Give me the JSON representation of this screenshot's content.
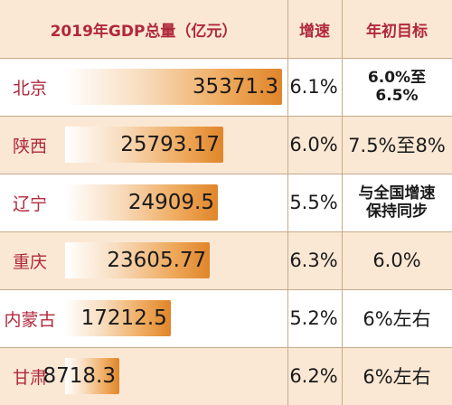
{
  "chart_data": {
    "type": "bar",
    "orientation": "horizontal",
    "columns": {
      "value_header": "2019年GDP总量（亿元）",
      "growth_header": "增速",
      "target_header": "年初目标"
    },
    "categories": [
      "北京",
      "陕西",
      "辽宁",
      "重庆",
      "内蒙古",
      "甘肃"
    ],
    "values": [
      35371.3,
      25793.17,
      24909.5,
      23605.77,
      17212.5,
      8718.3
    ],
    "value_labels": [
      "35371.3",
      "25793.17",
      "24909.5",
      "23605.77",
      "17212.5",
      "8718.3"
    ],
    "growth": [
      "6.1%",
      "6.0%",
      "5.5%",
      "6.3%",
      "5.2%",
      "6.2%"
    ],
    "targets": [
      "6.0%至6.5%",
      "7.5%至8%",
      "与全国增速保持同步",
      "6.0%",
      "6%左右",
      "6%左右"
    ],
    "xlim": [
      0,
      35371.3
    ],
    "grid": false,
    "colors": {
      "header_bg": "#fbe8d4",
      "header_text": "#b0283c",
      "bar_start": "#f8ddbf",
      "bar_end": "#e0852a"
    }
  }
}
